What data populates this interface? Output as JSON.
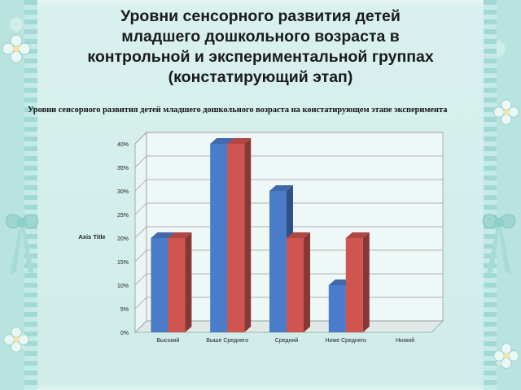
{
  "slide": {
    "title_lines": [
      "Уровни сенсорного развития детей",
      "младшего дошкольного возраста в",
      "контрольной и экспериментальной группах",
      "(констатирующий этап)"
    ]
  },
  "chart_data": {
    "type": "bar",
    "title": "Уровни сенсорного развития детей младшего дошкольного возраста на констатирующем этапе эксперимента",
    "ylabel": "Axis Title",
    "xlabel": "",
    "categories": [
      "Высокий",
      "Выше Среднего",
      "Средний",
      "Ниже Среднего",
      "Низкий"
    ],
    "series": [
      {
        "values": [
          20,
          40,
          30,
          10,
          0
        ],
        "color": "#4a7cc9"
      },
      {
        "values": [
          20,
          40,
          20,
          20,
          0
        ],
        "color": "#d05450"
      }
    ],
    "ylim": [
      0,
      40
    ],
    "yticks": [
      "0%",
      "5%",
      "10%",
      "15%",
      "20%",
      "25%",
      "30%",
      "35%",
      "40%"
    ],
    "grid": true,
    "three_d": true
  }
}
